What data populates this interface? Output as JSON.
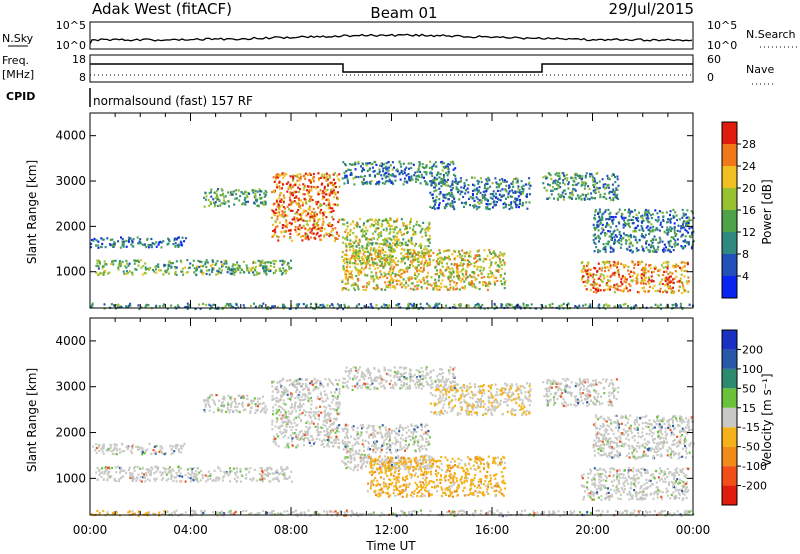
{
  "header": {
    "station": "Adak West (fitACF)",
    "beam": "Beam 01",
    "date": "29/Jul/2015"
  },
  "status_strip": {
    "left_label": "N.Sky",
    "left_ticks": [
      "10^5",
      "10^0"
    ],
    "right_ticks": [
      "10^5",
      "10^0"
    ],
    "right_label": "N.Search"
  },
  "freq_strip": {
    "left_label_top": "Freq.",
    "left_label_unit": "[MHz]",
    "left_ticks": [
      "18",
      "8"
    ],
    "right_ticks": [
      "60",
      "0"
    ],
    "right_label": "Nave",
    "cpid_label": "CPID",
    "mode": "normalsound (fast) 157 RF"
  },
  "chart_data": [
    {
      "type": "heatmap",
      "name": "power",
      "ylabel": "Slant Range [km]",
      "ylim": [
        200,
        4500
      ],
      "yticks": [
        "4000",
        "3000",
        "2000",
        "1000"
      ],
      "xlim": [
        0,
        24
      ],
      "colorbar": {
        "label": "Power [dB]",
        "ticks": [
          "28",
          "24",
          "20",
          "16",
          "12",
          "8",
          "4"
        ],
        "colors": [
          "#0a24f0",
          "#2050b8",
          "#2e8a7e",
          "#4ea34a",
          "#98c030",
          "#f0c020",
          "#f07818",
          "#e01c0c"
        ]
      },
      "echo_regions": [
        {
          "t0": 0.0,
          "t1": 3.8,
          "r0": 1550,
          "r1": 1780,
          "level": 0.25
        },
        {
          "t0": 0.2,
          "t1": 8.0,
          "r0": 950,
          "r1": 1280,
          "level": 0.45
        },
        {
          "t0": 4.5,
          "t1": 7.0,
          "r0": 2450,
          "r1": 2850,
          "level": 0.4
        },
        {
          "t0": 7.2,
          "t1": 9.9,
          "r0": 1700,
          "r1": 3200,
          "level": 0.8
        },
        {
          "t0": 10.0,
          "t1": 14.5,
          "r0": 2950,
          "r1": 3450,
          "level": 0.3
        },
        {
          "t0": 10.0,
          "t1": 13.5,
          "r0": 1200,
          "r1": 2200,
          "level": 0.55
        },
        {
          "t0": 10.0,
          "t1": 16.5,
          "r0": 620,
          "r1": 1500,
          "level": 0.65
        },
        {
          "t0": 13.5,
          "t1": 17.5,
          "r0": 2400,
          "r1": 3100,
          "level": 0.3
        },
        {
          "t0": 18.0,
          "t1": 21.0,
          "r0": 2600,
          "r1": 3200,
          "level": 0.35
        },
        {
          "t0": 19.5,
          "t1": 23.8,
          "r0": 550,
          "r1": 1250,
          "level": 0.75
        },
        {
          "t0": 20.0,
          "t1": 24.0,
          "r0": 1450,
          "r1": 2400,
          "level": 0.3
        },
        {
          "t0": 0.0,
          "t1": 24.0,
          "r0": 200,
          "r1": 320,
          "level": 0.35
        }
      ]
    },
    {
      "type": "heatmap",
      "name": "velocity",
      "ylabel": "Slant Range [km]",
      "xlabel": "Time UT",
      "ylim": [
        200,
        4500
      ],
      "yticks": [
        "4000",
        "3000",
        "2000",
        "1000"
      ],
      "xlim": [
        0,
        24
      ],
      "xticks": [
        "00:00",
        "04:00",
        "08:00",
        "12:00",
        "16:00",
        "20:00",
        "00:00"
      ],
      "colorbar": {
        "label": "Velocity [m s⁻¹]",
        "ticks": [
          "200",
          "100",
          "50",
          "15",
          "-15",
          "-50",
          "-100",
          "-200"
        ],
        "colors": [
          "#e01c0c",
          "#f05018",
          "#f08a18",
          "#f5b218",
          "#c8c8c4",
          "#6ac23a",
          "#2e8a6e",
          "#2a58a8",
          "#1a30c0"
        ]
      },
      "echo_regions": [
        {
          "t0": 0.0,
          "t1": 3.8,
          "r0": 1550,
          "r1": 1780,
          "v": 0
        },
        {
          "t0": 0.2,
          "t1": 8.0,
          "r0": 950,
          "r1": 1280,
          "v": 0
        },
        {
          "t0": 4.5,
          "t1": 7.0,
          "r0": 2450,
          "r1": 2850,
          "v": 0
        },
        {
          "t0": 7.2,
          "t1": 9.9,
          "r0": 1700,
          "r1": 3200,
          "v": 0
        },
        {
          "t0": 10.0,
          "t1": 14.5,
          "r0": 2950,
          "r1": 3450,
          "v": 0
        },
        {
          "t0": 10.0,
          "t1": 13.5,
          "r0": 1200,
          "r1": 2200,
          "v": 0
        },
        {
          "t0": 11.0,
          "t1": 16.5,
          "r0": 620,
          "r1": 1500,
          "v": -40
        },
        {
          "t0": 13.5,
          "t1": 17.5,
          "r0": 2400,
          "r1": 3100,
          "v": -20
        },
        {
          "t0": 18.0,
          "t1": 21.0,
          "r0": 2600,
          "r1": 3200,
          "v": 0
        },
        {
          "t0": 19.5,
          "t1": 23.8,
          "r0": 550,
          "r1": 1250,
          "v": 0
        },
        {
          "t0": 20.0,
          "t1": 24.0,
          "r0": 1450,
          "r1": 2400,
          "v": 0
        },
        {
          "t0": 0.0,
          "t1": 3.0,
          "r0": 200,
          "r1": 320,
          "v": -40
        },
        {
          "t0": 3.0,
          "t1": 24.0,
          "r0": 200,
          "r1": 320,
          "v": 0
        }
      ]
    }
  ]
}
